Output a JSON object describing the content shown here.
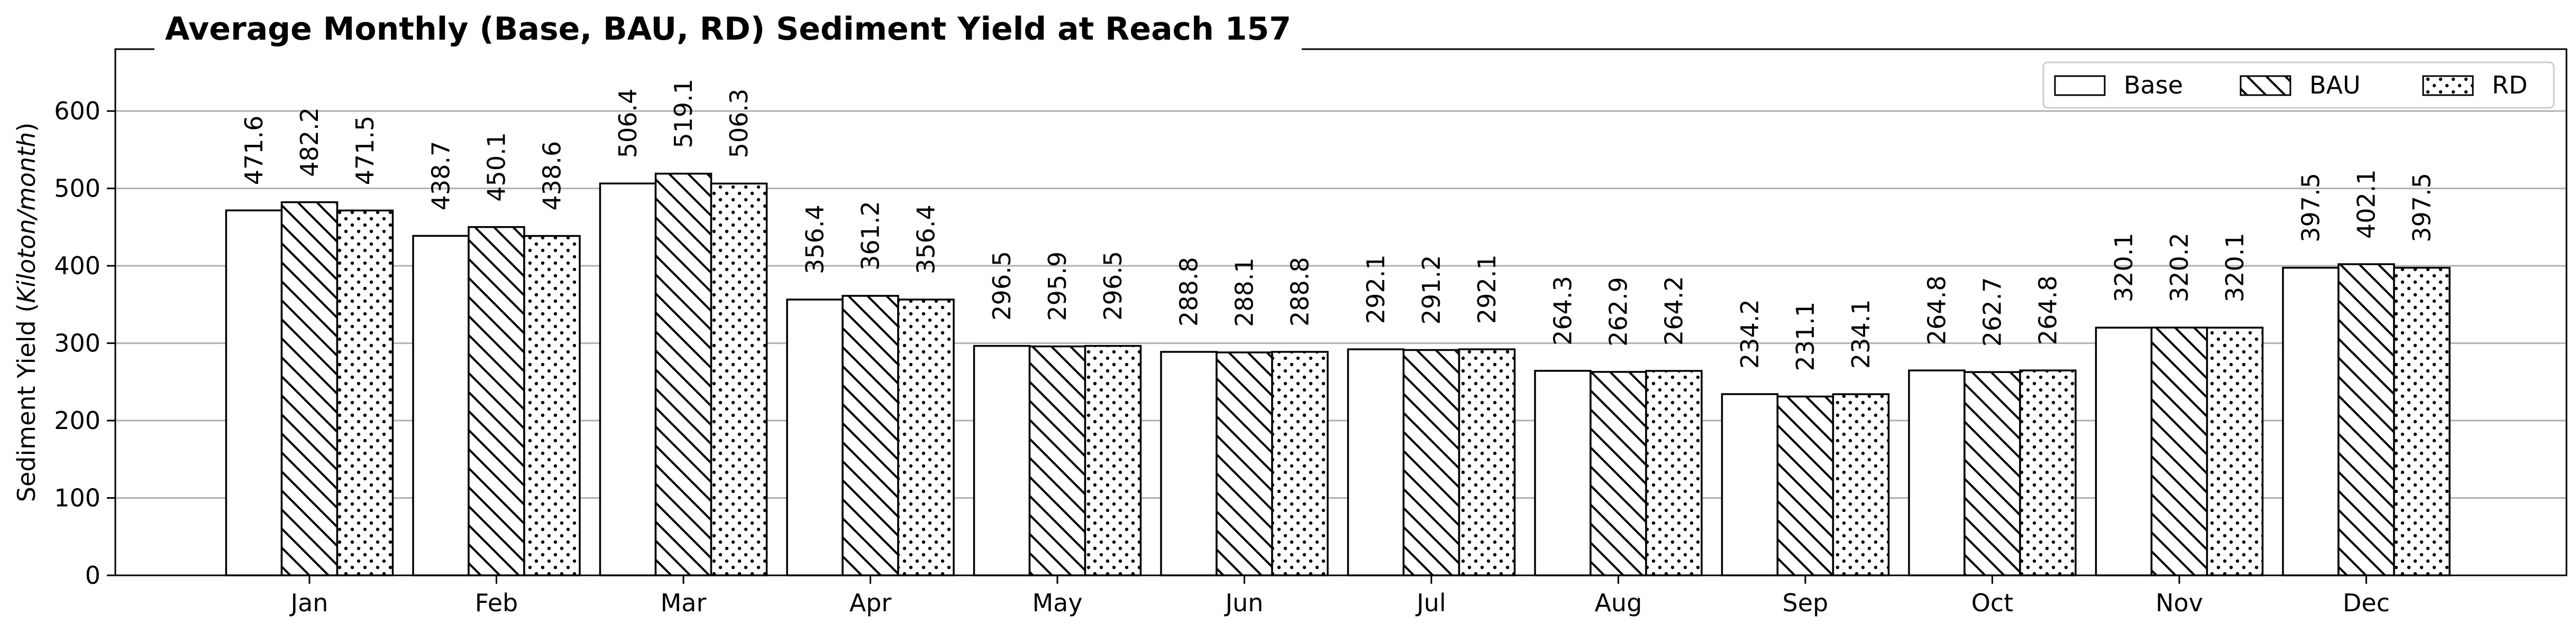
{
  "chart_data": {
    "type": "bar",
    "title": "Average Monthly (Base, BAU, RD) Sediment Yield at Reach 157",
    "xlabel": "",
    "ylabel": "Sediment Yield (Kiloton/month)",
    "ylabel_parts": [
      "Sediment Yield (",
      "Kiloton/month",
      ")"
    ],
    "ylim": [
      0,
      680
    ],
    "yticks": [
      0,
      100,
      200,
      300,
      400,
      500,
      600
    ],
    "grid": "horizontal",
    "legend_position": "top-right",
    "categories": [
      "Jan",
      "Feb",
      "Mar",
      "Apr",
      "May",
      "Jun",
      "Jul",
      "Aug",
      "Sep",
      "Oct",
      "Nov",
      "Dec"
    ],
    "series": [
      {
        "name": "Base",
        "hatch": "none",
        "values": [
          471.6,
          438.7,
          506.4,
          356.4,
          296.5,
          288.8,
          292.1,
          264.3,
          234.2,
          264.8,
          320.1,
          397.5
        ]
      },
      {
        "name": "BAU",
        "hatch": "diagonal",
        "values": [
          482.2,
          450.1,
          519.1,
          361.2,
          295.9,
          288.1,
          291.2,
          262.9,
          231.1,
          262.7,
          320.2,
          402.1
        ]
      },
      {
        "name": "RD",
        "hatch": "dots",
        "values": [
          471.5,
          438.6,
          506.3,
          356.4,
          296.5,
          288.8,
          292.1,
          264.2,
          234.1,
          264.8,
          320.1,
          397.5
        ]
      }
    ],
    "colors": {
      "bar_fill": "#ffffff",
      "bar_edge": "#000000",
      "grid": "#b0b0b0"
    }
  }
}
